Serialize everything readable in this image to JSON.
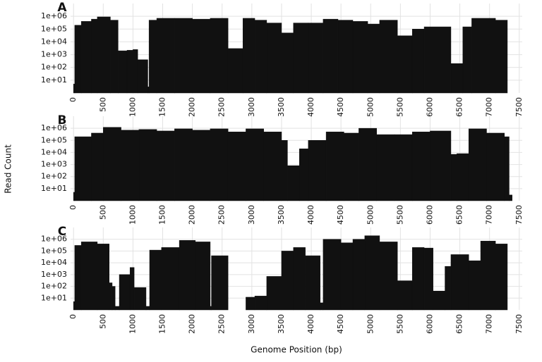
{
  "y_label": "Read Count",
  "x_label": "Genome Position (bp)",
  "chart_data": [
    {
      "type": "histogram",
      "title": "A",
      "log_y": true,
      "grid": true,
      "color": "#111111",
      "bins": [
        0,
        20,
        130,
        300,
        400,
        620,
        750,
        900,
        1000,
        1080,
        1250,
        1270,
        1400,
        1700,
        2000,
        2300,
        2600,
        2850,
        3050,
        3250,
        3500,
        3700,
        3950,
        4200,
        4450,
        4700,
        4950,
        5150,
        5450,
        5700,
        5900,
        6350,
        6550,
        6700,
        7100,
        7300
      ],
      "counts": [
        5,
        200000,
        400000,
        600000,
        900000,
        500000,
        2000,
        2200,
        2500,
        400,
        3,
        500000,
        700000,
        700000,
        600000,
        700000,
        3000,
        700000,
        500000,
        300000,
        50000,
        300000,
        300000,
        600000,
        500000,
        400000,
        250000,
        500000,
        30000,
        100000,
        150000,
        200,
        150000,
        700000,
        500000
      ],
      "xlim": [
        -50,
        7550
      ],
      "xticks": [
        0,
        500,
        1000,
        1500,
        2000,
        2500,
        3000,
        3500,
        4000,
        4500,
        5000,
        5500,
        6000,
        6500,
        7000,
        7500
      ],
      "ylim": [
        1,
        10000000
      ],
      "yticks": [
        {
          "value": 10,
          "label": "1e+01"
        },
        {
          "value": 100,
          "label": "1e+02"
        },
        {
          "value": 1000,
          "label": "1e+03"
        },
        {
          "value": 10000,
          "label": "1e+04"
        },
        {
          "value": 100000,
          "label": "1e+05"
        },
        {
          "value": 1000000,
          "label": "1e+06"
        }
      ]
    },
    {
      "type": "histogram",
      "title": "B",
      "log_y": true,
      "grid": true,
      "color": "#111111",
      "bins": [
        0,
        20,
        300,
        500,
        800,
        1100,
        1400,
        1700,
        2000,
        2300,
        2600,
        2900,
        3200,
        3500,
        3600,
        3800,
        3950,
        4250,
        4550,
        4800,
        5100,
        5400,
        5700,
        6000,
        6350,
        6450,
        6650,
        6950,
        7250,
        7330,
        7380
      ],
      "counts": [
        5,
        200000,
        400000,
        1200000,
        700000,
        800000,
        600000,
        900000,
        700000,
        900000,
        500000,
        900000,
        500000,
        100000,
        800,
        20000,
        100000,
        500000,
        400000,
        1000000,
        300000,
        300000,
        500000,
        600000,
        7000,
        8000,
        900000,
        400000,
        200000,
        3
      ],
      "xlim": [
        -50,
        7550
      ],
      "xticks": [
        0,
        500,
        1000,
        1500,
        2000,
        2500,
        3000,
        3500,
        4000,
        4500,
        5000,
        5500,
        6000,
        6500,
        7000,
        7500
      ],
      "ylim": [
        1,
        10000000
      ],
      "yticks": [
        {
          "value": 10,
          "label": "1e+01"
        },
        {
          "value": 100,
          "label": "1e+02"
        },
        {
          "value": 1000,
          "label": "1e+03"
        },
        {
          "value": 10000,
          "label": "1e+04"
        },
        {
          "value": 100000,
          "label": "1e+05"
        },
        {
          "value": 1000000,
          "label": "1e+06"
        }
      ]
    },
    {
      "type": "histogram",
      "title": "C",
      "log_y": true,
      "grid": true,
      "color": "#111111",
      "bins": [
        0,
        20,
        130,
        400,
        600,
        650,
        700,
        770,
        950,
        1020,
        1220,
        1280,
        1480,
        1780,
        2050,
        2300,
        2320,
        2600,
        2900,
        3050,
        3250,
        3500,
        3700,
        3900,
        4150,
        4200,
        4500,
        4700,
        4900,
        5150,
        5450,
        5700,
        5900,
        6050,
        6250,
        6350,
        6650,
        6850,
        7100,
        7300
      ],
      "counts": [
        5,
        300000,
        600000,
        400000,
        200,
        100,
        2,
        1000,
        4000,
        80,
        2,
        120000,
        200000,
        800000,
        600000,
        2,
        40000,
        null,
        12,
        15,
        700,
        100000,
        200000,
        40000,
        4,
        1000000,
        500000,
        1000000,
        2000000,
        600000,
        300,
        200000,
        180000,
        40,
        5000,
        50000,
        15000,
        700000,
        400000
      ],
      "xlim": [
        -50,
        7550
      ],
      "xticks": [
        0,
        500,
        1000,
        1500,
        2000,
        2500,
        3000,
        3500,
        4000,
        4500,
        5000,
        5500,
        6000,
        6500,
        7000,
        7500
      ],
      "ylim": [
        1,
        10000000
      ],
      "yticks": [
        {
          "value": 10,
          "label": "1e+01"
        },
        {
          "value": 100,
          "label": "1e+02"
        },
        {
          "value": 1000,
          "label": "1e+03"
        },
        {
          "value": 10000,
          "label": "1e+04"
        },
        {
          "value": 100000,
          "label": "1e+05"
        },
        {
          "value": 1000000,
          "label": "1e+06"
        }
      ]
    }
  ]
}
